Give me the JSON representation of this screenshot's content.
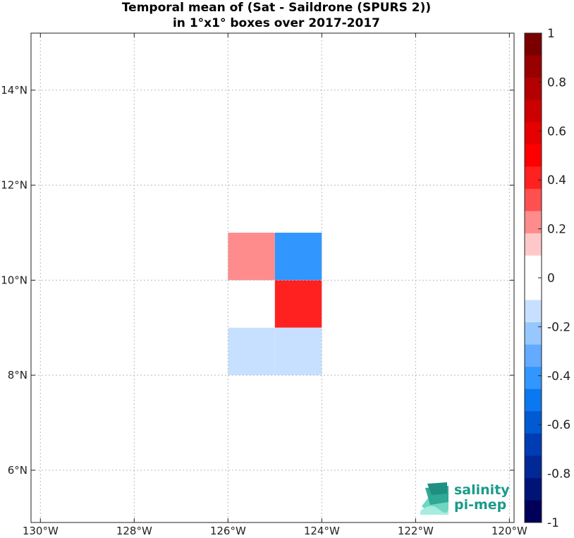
{
  "chart_data": {
    "type": "heatmap",
    "title": "Temporal mean of (Sat - Saildrone (SPURS 2))",
    "subtitle": "in 1°x1° boxes over 2017-2017",
    "x_ticks": [
      "130°W",
      "128°W",
      "126°W",
      "124°W",
      "122°W",
      "120°W"
    ],
    "y_ticks": [
      "6°N",
      "8°N",
      "10°N",
      "12°N",
      "14°N"
    ],
    "xlim": [
      -130.2,
      -119.9
    ],
    "ylim": [
      4.9,
      15.2
    ],
    "grid": true,
    "cells": [
      {
        "lon_min": -126,
        "lon_max": -125,
        "lat_min": 10,
        "lat_max": 11,
        "value": 0.25
      },
      {
        "lon_min": -125,
        "lon_max": -124,
        "lat_min": 10,
        "lat_max": 11,
        "value": -0.45
      },
      {
        "lon_min": -125,
        "lon_max": -124,
        "lat_min": 9,
        "lat_max": 10,
        "value": 0.45
      },
      {
        "lon_min": -126,
        "lon_max": -125,
        "lat_min": 8,
        "lat_max": 9,
        "value": -0.15
      },
      {
        "lon_min": -125,
        "lon_max": -124,
        "lat_min": 8,
        "lat_max": 9,
        "value": -0.15
      }
    ],
    "colorbar": {
      "range": [
        -1,
        1
      ],
      "step": 0.1,
      "tick_labels": [
        "1",
        "0.8",
        "0.6",
        "0.4",
        "0.2",
        "0",
        "-0.2",
        "-0.4",
        "-0.6",
        "-0.8",
        "-1"
      ],
      "colors_top_to_bottom": [
        "#7a0000",
        "#990000",
        "#b30000",
        "#cc0000",
        "#e60000",
        "#ff0000",
        "#ff2020",
        "#ff5050",
        "#ff8c8c",
        "#ffc8c8",
        "#ffffff",
        "#ffffff",
        "#c8e0ff",
        "#96c8ff",
        "#64aaff",
        "#3296ff",
        "#0a78f0",
        "#005ad2",
        "#003cb4",
        "#002896",
        "#001478",
        "#00005a"
      ]
    },
    "logo": {
      "line1": "salinity",
      "line2": "pi-mep"
    }
  }
}
